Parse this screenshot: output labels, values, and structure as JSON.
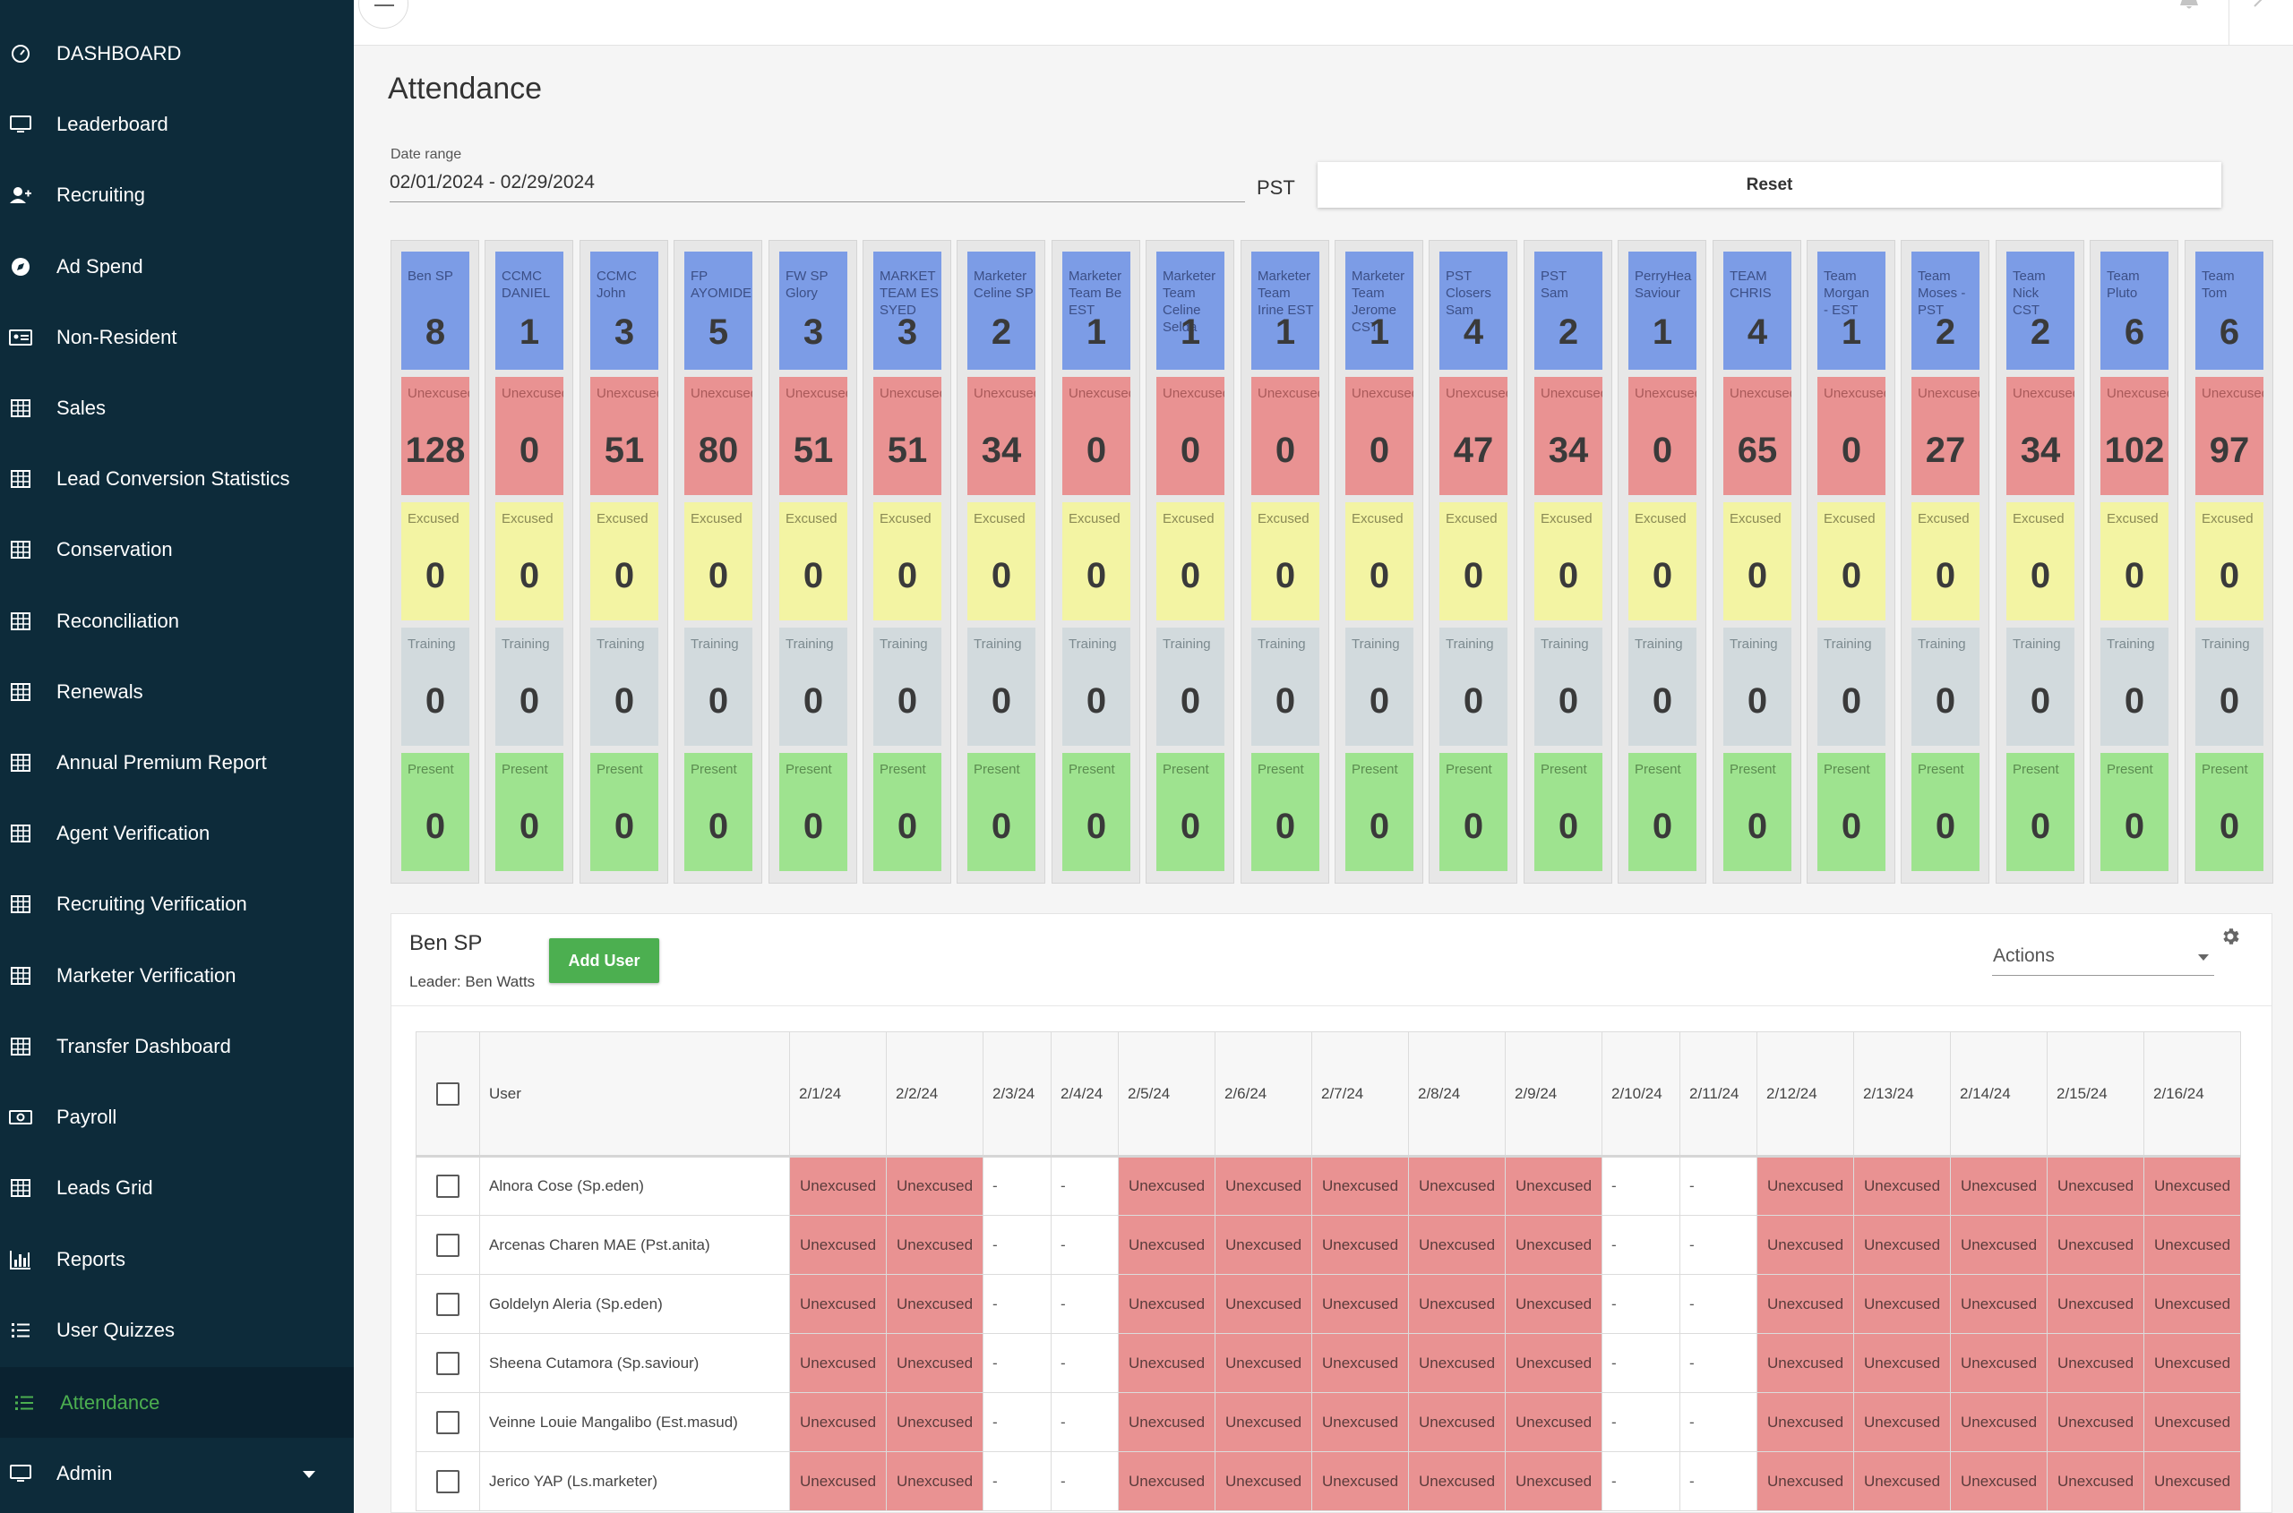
{
  "sidebar": {
    "items": [
      {
        "label": "DASHBOARD",
        "icon": "speedometer-icon",
        "name": "sidebar-item-dashboard"
      },
      {
        "label": "Leaderboard",
        "icon": "monitor-icon",
        "name": "sidebar-item-leaderboard"
      },
      {
        "label": "Recruiting",
        "icon": "add-user-icon",
        "name": "sidebar-item-recruiting"
      },
      {
        "label": "Ad Spend",
        "icon": "compass-icon",
        "name": "sidebar-item-ad-spend"
      },
      {
        "label": "Non-Resident",
        "icon": "id-card-icon",
        "name": "sidebar-item-non-resident"
      },
      {
        "label": "Sales",
        "icon": "table-icon",
        "name": "sidebar-item-sales"
      },
      {
        "label": "Lead Conversion Statistics",
        "icon": "table-icon",
        "name": "sidebar-item-lead-conversion-statistics"
      },
      {
        "label": "Conservation",
        "icon": "table-icon",
        "name": "sidebar-item-conservation"
      },
      {
        "label": "Reconciliation",
        "icon": "table-icon",
        "name": "sidebar-item-reconciliation"
      },
      {
        "label": "Renewals",
        "icon": "table-icon",
        "name": "sidebar-item-renewals"
      },
      {
        "label": "Annual Premium Report",
        "icon": "table-icon",
        "name": "sidebar-item-annual-premium-report"
      },
      {
        "label": "Agent Verification",
        "icon": "table-icon",
        "name": "sidebar-item-agent-verification"
      },
      {
        "label": "Recruiting Verification",
        "icon": "table-icon",
        "name": "sidebar-item-recruiting-verification"
      },
      {
        "label": "Marketer Verification",
        "icon": "table-icon",
        "name": "sidebar-item-marketer-verification"
      },
      {
        "label": "Transfer Dashboard",
        "icon": "table-icon",
        "name": "sidebar-item-transfer-dashboard"
      },
      {
        "label": "Payroll",
        "icon": "money-icon",
        "name": "sidebar-item-payroll"
      },
      {
        "label": "Leads Grid",
        "icon": "table-icon",
        "name": "sidebar-item-leads-grid"
      },
      {
        "label": "Reports",
        "icon": "bar-chart-icon",
        "name": "sidebar-item-reports"
      },
      {
        "label": "User Quizzes",
        "icon": "list-icon",
        "name": "sidebar-item-user-quizzes"
      },
      {
        "label": "Attendance",
        "icon": "list-icon",
        "name": "sidebar-item-attendance",
        "active": true
      },
      {
        "label": "Admin",
        "icon": "monitor-icon",
        "name": "sidebar-item-admin",
        "expandable": true
      }
    ]
  },
  "page": {
    "title": "Attendance",
    "date_range_label": "Date range",
    "date_range_value": "02/01/2024 - 02/29/2024",
    "timezone": "PST",
    "reset_label": "Reset"
  },
  "status_labels": {
    "unexcused": "Unexcused",
    "excused": "Excused",
    "training": "Training",
    "present": "Present"
  },
  "teams": [
    {
      "name": "Ben SP",
      "total": 8,
      "unexcused": 128,
      "excused": 0,
      "training": 0,
      "present": 0
    },
    {
      "name": "CCMC\nDANIEL",
      "total": 1,
      "unexcused": 0,
      "excused": 0,
      "training": 0,
      "present": 0
    },
    {
      "name": "CCMC\nJohn",
      "total": 3,
      "unexcused": 51,
      "excused": 0,
      "training": 0,
      "present": 0
    },
    {
      "name": "FP\nAYOMIDE",
      "total": 5,
      "unexcused": 80,
      "excused": 0,
      "training": 0,
      "present": 0
    },
    {
      "name": "FW SP\nGlory",
      "total": 3,
      "unexcused": 51,
      "excused": 0,
      "training": 0,
      "present": 0
    },
    {
      "name": "MARKET\nTEAM ES\nSYED",
      "total": 3,
      "unexcused": 51,
      "excused": 0,
      "training": 0,
      "present": 0
    },
    {
      "name": "Marketer\nCeline SP",
      "total": 2,
      "unexcused": 34,
      "excused": 0,
      "training": 0,
      "present": 0
    },
    {
      "name": "Marketer\nTeam Be\nEST",
      "total": 1,
      "unexcused": 0,
      "excused": 0,
      "training": 0,
      "present": 0
    },
    {
      "name": "Marketer\nTeam\nCeline\nSelda",
      "total": 1,
      "unexcused": 0,
      "excused": 0,
      "training": 0,
      "present": 0
    },
    {
      "name": "Marketer\nTeam\nIrine EST",
      "total": 1,
      "unexcused": 0,
      "excused": 0,
      "training": 0,
      "present": 0
    },
    {
      "name": "Marketer\nTeam\nJerome\nCST",
      "total": 1,
      "unexcused": 0,
      "excused": 0,
      "training": 0,
      "present": 0
    },
    {
      "name": "PST\nClosers\nSam",
      "total": 4,
      "unexcused": 47,
      "excused": 0,
      "training": 0,
      "present": 0
    },
    {
      "name": "PST\nSam",
      "total": 2,
      "unexcused": 34,
      "excused": 0,
      "training": 0,
      "present": 0
    },
    {
      "name": "PerryHea\nSaviour",
      "total": 1,
      "unexcused": 0,
      "excused": 0,
      "training": 0,
      "present": 0
    },
    {
      "name": "TEAM\nCHRIS",
      "total": 4,
      "unexcused": 65,
      "excused": 0,
      "training": 0,
      "present": 0
    },
    {
      "name": "Team\nMorgan\n- EST",
      "total": 1,
      "unexcused": 0,
      "excused": 0,
      "training": 0,
      "present": 0
    },
    {
      "name": "Team\nMoses -\nPST",
      "total": 2,
      "unexcused": 27,
      "excused": 0,
      "training": 0,
      "present": 0
    },
    {
      "name": "Team\nNick\nCST",
      "total": 2,
      "unexcused": 34,
      "excused": 0,
      "training": 0,
      "present": 0
    },
    {
      "name": "Team\nPluto",
      "total": 6,
      "unexcused": 102,
      "excused": 0,
      "training": 0,
      "present": 0
    },
    {
      "name": "Team\nTom",
      "total": 6,
      "unexcused": 97,
      "excused": 0,
      "training": 0,
      "present": 0
    }
  ],
  "team_panel": {
    "team_name": "Ben SP",
    "leader": "Leader: Ben Watts",
    "add_user_label": "Add User",
    "actions_label": "Actions"
  },
  "table": {
    "user_header": "User",
    "dates": [
      "2/1/24",
      "2/2/24",
      "2/3/24",
      "2/4/24",
      "2/5/24",
      "2/6/24",
      "2/7/24",
      "2/8/24",
      "2/9/24",
      "2/10/24",
      "2/11/24",
      "2/12/24",
      "2/13/24",
      "2/14/24",
      "2/15/24",
      "2/16/24"
    ],
    "rows": [
      {
        "user": "Alnora Cose (Sp.eden)",
        "cells": [
          "Unexcused",
          "Unexcused",
          "-",
          "-",
          "Unexcused",
          "Unexcused",
          "Unexcused",
          "Unexcused",
          "Unexcused",
          "-",
          "-",
          "Unexcused",
          "Unexcused",
          "Unexcused",
          "Unexcused",
          "Unexcused"
        ]
      },
      {
        "user": "Arcenas Charen MAE (Pst.anita)",
        "cells": [
          "Unexcused",
          "Unexcused",
          "-",
          "-",
          "Unexcused",
          "Unexcused",
          "Unexcused",
          "Unexcused",
          "Unexcused",
          "-",
          "-",
          "Unexcused",
          "Unexcused",
          "Unexcused",
          "Unexcused",
          "Unexcused"
        ]
      },
      {
        "user": "Goldelyn Aleria (Sp.eden)",
        "cells": [
          "Unexcused",
          "Unexcused",
          "-",
          "-",
          "Unexcused",
          "Unexcused",
          "Unexcused",
          "Unexcused",
          "Unexcused",
          "-",
          "-",
          "Unexcused",
          "Unexcused",
          "Unexcused",
          "Unexcused",
          "Unexcused"
        ]
      },
      {
        "user": "Sheena Cutamora (Sp.saviour)",
        "cells": [
          "Unexcused",
          "Unexcused",
          "-",
          "-",
          "Unexcused",
          "Unexcused",
          "Unexcused",
          "Unexcused",
          "Unexcused",
          "-",
          "-",
          "Unexcused",
          "Unexcused",
          "Unexcused",
          "Unexcused",
          "Unexcused"
        ]
      },
      {
        "user": "Veinne Louie Mangalibo (Est.masud)",
        "cells": [
          "Unexcused",
          "Unexcused",
          "-",
          "-",
          "Unexcused",
          "Unexcused",
          "Unexcused",
          "Unexcused",
          "Unexcused",
          "-",
          "-",
          "Unexcused",
          "Unexcused",
          "Unexcused",
          "Unexcused",
          "Unexcused"
        ]
      },
      {
        "user": "Jerico YAP (Ls.marketer)",
        "cells": [
          "Unexcused",
          "Unexcused",
          "-",
          "-",
          "Unexcused",
          "Unexcused",
          "Unexcused",
          "Unexcused",
          "Unexcused",
          "-",
          "-",
          "Unexcused",
          "Unexcused",
          "Unexcused",
          "Unexcused",
          "Unexcused"
        ]
      }
    ]
  },
  "colors": {
    "sidebar_bg": "#0d2b3a",
    "active_nav": "#4caf50",
    "team_name_cell": "#7c9ce6",
    "unexcused": "#e99292",
    "excused": "#f3f4a3",
    "training": "#d2dadd",
    "present": "#9ee38f",
    "add_user_button": "#4caf50"
  }
}
